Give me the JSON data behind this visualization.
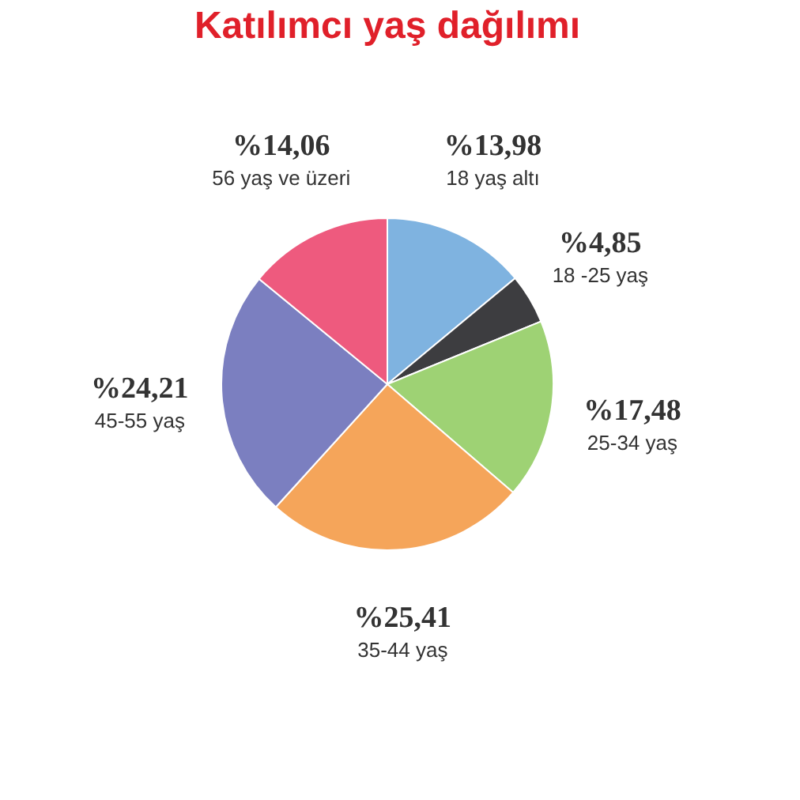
{
  "chart_data": {
    "type": "pie",
    "title": "Katılımcı yaş dağılımı",
    "categories": [
      "18 yaş altı",
      "18 -25 yaş",
      "25-34 yaş",
      "35-44 yaş",
      "45-55 yaş",
      "56 yaş ve üzeri"
    ],
    "values": [
      13.98,
      4.85,
      17.48,
      25.41,
      24.21,
      14.06
    ],
    "colors": [
      "#7fb3e0",
      "#3d3d40",
      "#9ed274",
      "#f5a55a",
      "#7b7fc0",
      "#ee5a7e"
    ],
    "value_labels": [
      "%13,98",
      "%4,85",
      "%17,48",
      "%25,41",
      "%24,21",
      "%14,06"
    ],
    "legend": false
  }
}
